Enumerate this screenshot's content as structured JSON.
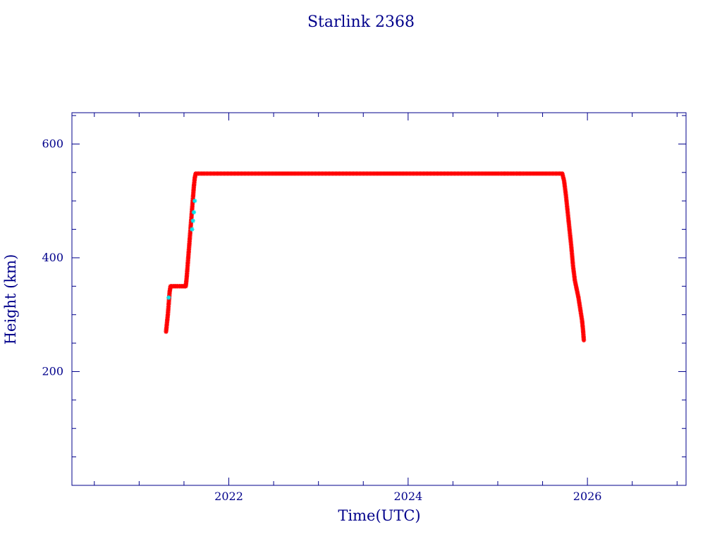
{
  "colors": {
    "axis": "#00008b",
    "text": "#00008b",
    "marker": "#ff0000",
    "marker_alt": "#00e5ee",
    "background": "#ffffff"
  },
  "chart_data": {
    "type": "scatter",
    "title": "Starlink 2368",
    "xlabel": "Time(UTC)",
    "ylabel": "Height (km)",
    "xlim": [
      2020.25,
      2027.1
    ],
    "ylim": [
      0,
      655
    ],
    "x_ticks": [
      2022,
      2024,
      2026
    ],
    "x_tick_labels": [
      "2022",
      "2024",
      "2026"
    ],
    "y_ticks": [
      200,
      400,
      600
    ],
    "y_tick_labels": [
      "200",
      "400",
      "600"
    ],
    "x_minor_step": 0.5,
    "y_minor_step": 50,
    "grid": false,
    "legend": "none",
    "series": [
      {
        "marker": "star",
        "color": "#ff0000",
        "points": [
          [
            2021.3,
            270
          ],
          [
            2021.31,
            285
          ],
          [
            2021.32,
            300
          ],
          [
            2021.33,
            320
          ],
          [
            2021.34,
            340
          ],
          [
            2021.35,
            350
          ],
          [
            2021.4,
            350
          ],
          [
            2021.45,
            350
          ],
          [
            2021.5,
            350
          ],
          [
            2021.52,
            350
          ],
          [
            2021.53,
            365
          ],
          [
            2021.54,
            385
          ],
          [
            2021.55,
            405
          ],
          [
            2021.56,
            425
          ],
          [
            2021.57,
            445
          ],
          [
            2021.58,
            465
          ],
          [
            2021.59,
            485
          ],
          [
            2021.6,
            505
          ],
          [
            2021.61,
            525
          ],
          [
            2021.62,
            540
          ],
          [
            2021.63,
            548
          ],
          [
            2021.75,
            548
          ],
          [
            2022.0,
            548
          ],
          [
            2022.5,
            548
          ],
          [
            2023.0,
            548
          ],
          [
            2023.5,
            548
          ],
          [
            2024.0,
            548
          ],
          [
            2024.5,
            548
          ],
          [
            2025.0,
            548
          ],
          [
            2025.3,
            548
          ],
          [
            2025.55,
            548
          ],
          [
            2025.72,
            548
          ],
          [
            2025.74,
            535
          ],
          [
            2025.76,
            510
          ],
          [
            2025.78,
            480
          ],
          [
            2025.8,
            450
          ],
          [
            2025.82,
            420
          ],
          [
            2025.84,
            385
          ],
          [
            2025.86,
            360
          ],
          [
            2025.88,
            345
          ],
          [
            2025.9,
            330
          ],
          [
            2025.92,
            310
          ],
          [
            2025.94,
            290
          ],
          [
            2025.95,
            275
          ],
          [
            2025.96,
            255
          ]
        ]
      },
      {
        "marker": "star",
        "color": "#00e5ee",
        "points": [
          [
            2021.33,
            330
          ],
          [
            2021.59,
            450
          ],
          [
            2021.6,
            465
          ],
          [
            2021.61,
            480
          ],
          [
            2021.62,
            500
          ]
        ]
      }
    ]
  }
}
